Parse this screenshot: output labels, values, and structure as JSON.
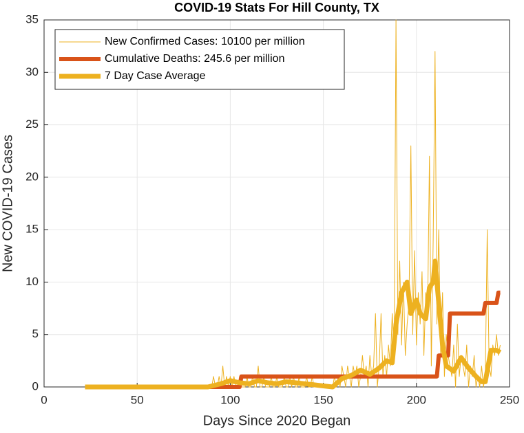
{
  "chart_data": {
    "type": "line",
    "title": "COVID-19 Stats For Hill County, TX",
    "xlabel": "Days Since 2020 Began",
    "ylabel": "New COVID-19 Cases",
    "xlim": [
      0,
      250
    ],
    "xticks": [
      0,
      50,
      100,
      150,
      200,
      250
    ],
    "ylim": [
      0,
      35
    ],
    "yticks": [
      0,
      5,
      10,
      15,
      20,
      25,
      30,
      35
    ],
    "grid": true,
    "legend_position": "northwest",
    "series": [
      {
        "name": "New Confirmed Cases: 10100 per million",
        "color": "#EDB120",
        "x": [
          22,
          88,
          89,
          90,
          91,
          92,
          93,
          94,
          95,
          96,
          97,
          98,
          99,
          100,
          101,
          102,
          103,
          104,
          105,
          106,
          107,
          108,
          109,
          110,
          111,
          112,
          113,
          114,
          115,
          116,
          117,
          118,
          119,
          120,
          121,
          122,
          123,
          124,
          125,
          126,
          127,
          128,
          129,
          130,
          131,
          132,
          133,
          134,
          135,
          136,
          137,
          138,
          139,
          140,
          141,
          142,
          143,
          144,
          145,
          146,
          147,
          148,
          149,
          150,
          151,
          152,
          153,
          154,
          155,
          156,
          157,
          158,
          159,
          160,
          161,
          162,
          163,
          164,
          165,
          166,
          167,
          168,
          169,
          170,
          171,
          172,
          173,
          174,
          175,
          176,
          177,
          178,
          179,
          180,
          181,
          182,
          183,
          184,
          185,
          186,
          187,
          188,
          189,
          190,
          191,
          192,
          193,
          194,
          195,
          196,
          197,
          198,
          199,
          200,
          201,
          202,
          203,
          204,
          205,
          206,
          207,
          208,
          209,
          210,
          211,
          212,
          213,
          214,
          215,
          216,
          217,
          218,
          219,
          220,
          221,
          222,
          223,
          224,
          225,
          226,
          227,
          228,
          229,
          230,
          231,
          232,
          233,
          234,
          235,
          236,
          237,
          238,
          239,
          240,
          241,
          242,
          243,
          244,
          245
        ],
        "values": [
          0,
          0,
          0,
          0,
          1,
          0,
          0,
          1,
          0,
          2,
          0,
          1,
          0,
          1,
          0,
          1,
          0,
          0,
          1,
          0,
          0,
          0,
          1,
          0,
          0,
          1,
          0,
          0,
          2,
          0,
          0,
          1,
          0,
          0,
          0,
          1,
          0,
          0,
          1,
          0,
          0,
          0,
          1,
          0,
          0,
          1,
          0,
          1,
          0,
          0,
          1,
          0,
          0,
          0,
          1,
          0,
          0,
          1,
          0,
          0,
          0,
          0,
          0,
          0,
          0,
          0,
          0,
          0,
          0,
          1,
          0,
          1,
          0,
          2,
          1,
          0,
          2,
          1,
          0,
          2,
          1,
          2,
          0,
          1,
          3,
          1,
          2,
          0,
          3,
          1,
          2,
          7,
          0,
          2,
          7,
          1,
          3,
          1,
          4,
          2,
          7,
          3,
          35,
          5,
          12,
          4,
          10,
          3,
          6,
          8,
          23,
          5,
          13,
          4,
          9,
          6,
          11,
          3,
          9,
          7,
          22,
          2,
          14,
          32,
          6,
          15,
          3,
          9,
          1,
          5,
          3,
          2,
          1,
          4,
          0,
          6,
          1,
          3,
          2,
          1,
          4,
          0,
          2,
          1,
          3,
          0,
          1,
          0,
          2,
          0,
          1,
          15,
          2,
          1,
          4,
          3,
          5,
          3,
          4
        ]
      },
      {
        "name": "Cumulative Deaths: 245.6 per million",
        "color": "#D95319",
        "x": [
          22,
          105,
          106,
          211,
          212,
          217,
          218,
          236,
          237,
          243,
          244,
          245
        ],
        "values": [
          0,
          0,
          1,
          1,
          3,
          3,
          7,
          7,
          8,
          8,
          9,
          9
        ]
      },
      {
        "name": "7 Day Case Average",
        "color": "#EDB120",
        "x": [
          22,
          88,
          95,
          100,
          105,
          110,
          115,
          120,
          125,
          130,
          135,
          140,
          145,
          150,
          155,
          160,
          165,
          170,
          175,
          180,
          184,
          187,
          189,
          192,
          195,
          197,
          200,
          202,
          205,
          207,
          209,
          210,
          212,
          214,
          216,
          220,
          224,
          228,
          232,
          235,
          237,
          240,
          243,
          245
        ],
        "values": [
          0,
          0,
          0.3,
          0.6,
          0.4,
          0.3,
          0.6,
          0.4,
          0.3,
          0.5,
          0.4,
          0.3,
          0.2,
          0.1,
          0,
          0.8,
          1.1,
          1.6,
          1.2,
          1.8,
          2.5,
          2.3,
          6,
          9,
          10,
          7,
          8.3,
          7,
          6.5,
          9.5,
          10,
          12,
          8,
          4,
          2,
          1.5,
          2.8,
          1.8,
          1,
          0.5,
          0.5,
          3.5,
          3.5,
          3.3
        ]
      }
    ]
  }
}
